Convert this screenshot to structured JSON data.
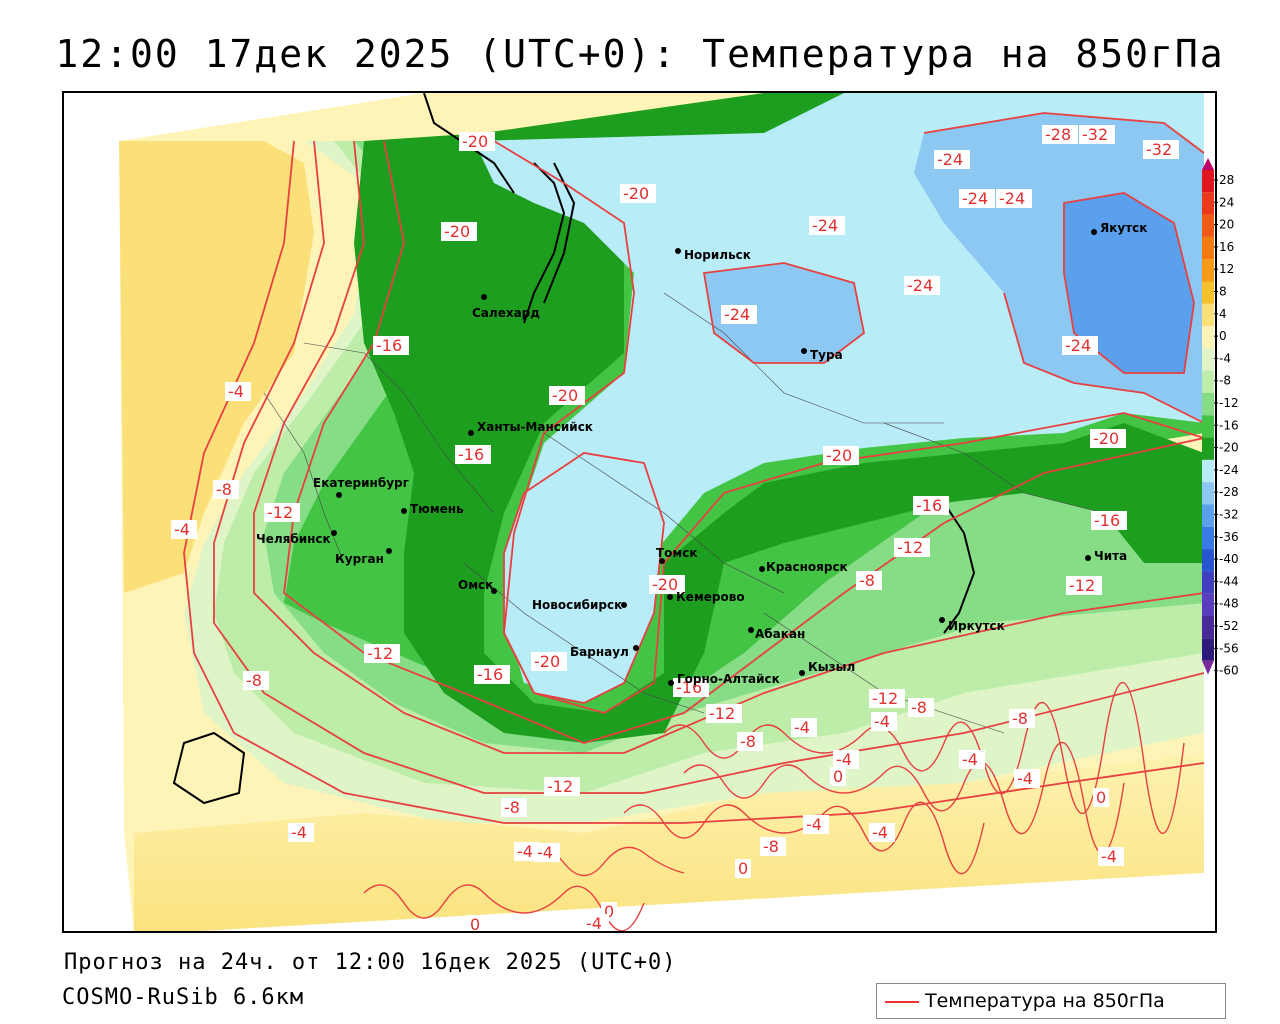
{
  "header": {
    "title": "12:00 17дек 2025 (UTC+0): Температура на 850гПа"
  },
  "footer": {
    "forecast_text": "Прогноз на 24ч. от 12:00 16дек 2025 (UTC+0)",
    "model_text": "COSMO-RuSib 6.6км"
  },
  "legend": {
    "label": "Температура на 850гПа",
    "line_color": "#ee3333"
  },
  "colorbar": {
    "ticks": [
      "28",
      "24",
      "20",
      "16",
      "12",
      "8",
      "4",
      "0",
      "-4",
      "-8",
      "-12",
      "-16",
      "-20",
      "-24",
      "-28",
      "-32",
      "-36",
      "-40",
      "-44",
      "-48",
      "-52",
      "-56",
      "-60"
    ],
    "colors": [
      "#c0006a",
      "#e0181e",
      "#ea3a1a",
      "#f05a12",
      "#f57a10",
      "#f89a18",
      "#f8c02a",
      "#fbe07a",
      "#fff4b8",
      "#dff5c8",
      "#bdeda8",
      "#86dd86",
      "#44c444",
      "#1e9e1e",
      "#b8ecf6",
      "#8cc8f2",
      "#5aa0ec",
      "#3a7ae4",
      "#2856d0",
      "#3f3fc0",
      "#5a3cc0",
      "#4a2a9a",
      "#2e1a7c",
      "#7a2a9a"
    ]
  },
  "cities": [
    {
      "name": "Норильск"
    },
    {
      "name": "Салехард"
    },
    {
      "name": "Тура"
    },
    {
      "name": "Якутск"
    },
    {
      "name": "Ханты-Мансийск"
    },
    {
      "name": "Екатеринбург"
    },
    {
      "name": "Тюмень"
    },
    {
      "name": "Челябинск"
    },
    {
      "name": "Курган"
    },
    {
      "name": "Омск"
    },
    {
      "name": "Томск"
    },
    {
      "name": "Новосибирск"
    },
    {
      "name": "Кемерово"
    },
    {
      "name": "Красноярск"
    },
    {
      "name": "Абакан"
    },
    {
      "name": "Барнаул"
    },
    {
      "name": "Горно-Алтайск"
    },
    {
      "name": "Кызыл"
    },
    {
      "name": "Иркутск"
    },
    {
      "name": "Чита"
    }
  ],
  "isotherm_labels": [
    "-20",
    "-20",
    "-20",
    "-24",
    "-24",
    "-24",
    "-24",
    "-28",
    "-32",
    "-32",
    "-24",
    "-24",
    "-16",
    "-4",
    "-20",
    "-16",
    "-24",
    "-20",
    "-20",
    "-16",
    "-16",
    "-12",
    "-12",
    "-4",
    "-8",
    "-12",
    "-16",
    "-20",
    "-20",
    "-12",
    "-8",
    "-12",
    "-16",
    "-12",
    "-8",
    "-4",
    "-12",
    "-8",
    "-4",
    "-4",
    "-8",
    "-8",
    "-4",
    "0",
    "-4",
    "-4",
    "-4",
    "-8",
    "-4",
    "-4",
    "0",
    "-8",
    "-4",
    "-4",
    "0",
    "0",
    "-4",
    "0"
  ]
}
